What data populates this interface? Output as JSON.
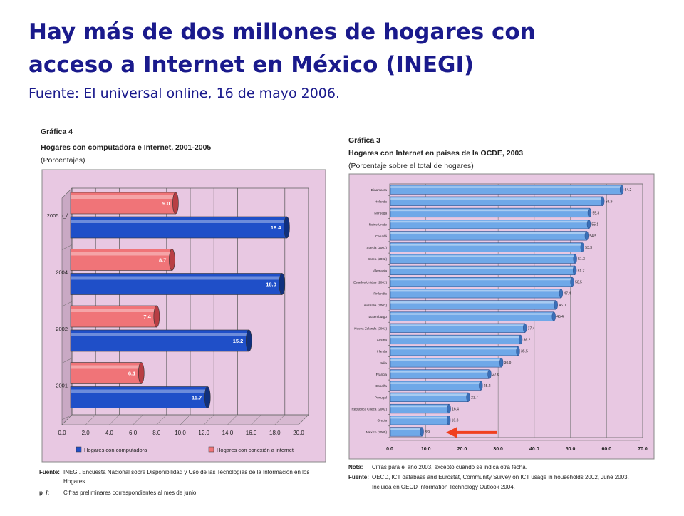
{
  "slide": {
    "title_line1": "Hay más de dos millones de hogares con",
    "title_line2": "acceso a Internet en México (INEGI)",
    "subtitle": "Fuente: El universal online, 16 de mayo 2006."
  },
  "colors": {
    "title": "#1a1a8c",
    "plot_bg": "#e8c8e2",
    "blue_bar": "#1f4fc8",
    "red_bar": "#f07478",
    "oecd_bar": "#6fa8e8",
    "arrow": "#f04020"
  },
  "chart_data": [
    {
      "type": "bar",
      "orientation": "horizontal",
      "heading": "Gráfica 4",
      "title": "Hogares con computadora e Internet, 2001-2005",
      "subtitle": "(Porcentajes)",
      "categories": [
        "2005 p_/",
        "2004",
        "2002",
        "2001"
      ],
      "series": [
        {
          "name": "Hogares con conexión a internet",
          "values": [
            9.0,
            8.7,
            7.4,
            6.1
          ],
          "labels": [
            "9.0",
            "8.7",
            "7.4",
            "6.1"
          ],
          "color": "red"
        },
        {
          "name": "Hogares con computadora",
          "values": [
            18.4,
            18.0,
            15.2,
            11.7
          ],
          "labels": [
            "18.4",
            "18.0",
            "15.2",
            "11.7"
          ],
          "color": "blue"
        }
      ],
      "xlim": [
        0,
        20
      ],
      "xticks": [
        "0.0",
        "2.0",
        "4.0",
        "6.0",
        "8.0",
        "10.0",
        "12.0",
        "14.0",
        "16.0",
        "18.0",
        "20.0"
      ],
      "legend_placement": "bottom",
      "grid": true,
      "footnotes": [
        {
          "label": "Fuente:",
          "text": "INEGI. Encuesta Nacional sobre Disponibilidad y Uso de las Tecnologías de la Información en los"
        },
        {
          "label": "",
          "text": "Hogares."
        },
        {
          "label": "p_/:",
          "text": "Cifras preliminares correspondientes al mes de junio"
        }
      ]
    },
    {
      "type": "bar",
      "orientation": "horizontal",
      "heading": "Gráfica 3",
      "title": "Hogares con Internet en países de la OCDE, 2003",
      "subtitle": "(Porcentaje sobre el total de hogares)",
      "categories": [
        "Dinamarca",
        "Holanda",
        "Noruega",
        "Reino Unido",
        "Canadá",
        "Suecia (2001)",
        "Corea (2002)",
        "Alemania",
        "Estados Unidos (2001)",
        "Finlandia",
        "Australia (2002)",
        "Luxemburgo",
        "Nueva Zelanda (2001)",
        "Austria",
        "Irlanda",
        "Italia",
        "Francia",
        "España",
        "Portugal",
        "República Checa (2002)",
        "Grecia",
        "México (2005)"
      ],
      "values": [
        64.2,
        58.9,
        55.3,
        55.1,
        54.5,
        53.3,
        51.3,
        51.2,
        50.5,
        47.4,
        46.0,
        45.4,
        37.4,
        36.2,
        35.5,
        30.9,
        27.6,
        25.2,
        21.7,
        16.4,
        16.3,
        8.9
      ],
      "labels": [
        "64.2",
        "58.9",
        "55.3",
        "55.1",
        "54.5",
        "53.3",
        "51.3",
        "51.2",
        "50.5",
        "47.4",
        "46.0",
        "45.4",
        "37.4",
        "36.2",
        "35.5",
        "30.9",
        "27.6",
        "25.2",
        "21.7",
        "16.4",
        "16.3",
        "8.9"
      ],
      "xlim": [
        0,
        70
      ],
      "xticks": [
        "0.0",
        "10.0",
        "20.0",
        "30.0",
        "40.0",
        "50.0",
        "60.0",
        "70.0"
      ],
      "grid": true,
      "highlight": "México (2005)",
      "footnotes": [
        {
          "label": "Nota:",
          "text": "Cifras para el año 2003, excepto cuando se indica otra fecha."
        },
        {
          "label": "Fuente:",
          "text": "OECD, ICT database and Eurostat, Community Survey on ICT usage in households 2002, June 2003."
        },
        {
          "label": "",
          "text": "Incluida en OECD Information Technology Outlook 2004."
        }
      ]
    }
  ]
}
